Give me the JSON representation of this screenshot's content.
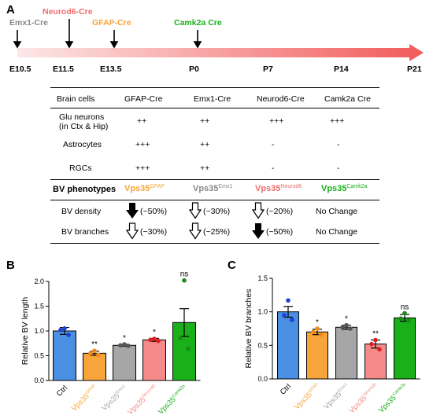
{
  "panels": {
    "a": "A",
    "b": "B",
    "c": "C"
  },
  "timeline": {
    "cre_lines": [
      {
        "label": "Emx1-Cre",
        "color": "#888888"
      },
      {
        "label": "Neurod6-Cre",
        "color": "#f26b6b"
      },
      {
        "label": "GFAP-Cre",
        "color": "#f7a43a"
      },
      {
        "label": "Camk2a Cre",
        "color": "#19b019"
      }
    ],
    "stages": [
      "E10.5",
      "E11.5",
      "E13.5",
      "P0",
      "P7",
      "P14",
      "P21"
    ]
  },
  "table": {
    "headers": [
      "Brain cells",
      "GFAP-Cre",
      "Emx1-Cre",
      "Neurod6-Cre",
      "Camk2a Cre"
    ],
    "rows": [
      {
        "label1": "Glu neurons",
        "label2": "(in Ctx & Hip)",
        "cells": [
          "++",
          "++",
          "+++",
          "+++"
        ]
      },
      {
        "label1": "Astrocytes",
        "cells": [
          "+++",
          "++",
          "-",
          "-"
        ]
      },
      {
        "label1": "RGCs",
        "cells": [
          "+++",
          "++",
          "-",
          "-"
        ]
      }
    ],
    "phenotype_header": "BV phenotypes",
    "phenotypes": [
      {
        "base": "Vps35",
        "sup": "GFAP",
        "color": "#f7a43a"
      },
      {
        "base": "Vps35",
        "sup": "Emx1",
        "color": "#888888"
      },
      {
        "base": "Vps35",
        "sup": "Neurod6",
        "color": "#f26b6b"
      },
      {
        "base": "Vps35",
        "sup": "Camk2a",
        "color": "#19b019"
      }
    ],
    "bv_rows": [
      {
        "label": "BV density",
        "cells": [
          "(~50%)",
          "(~30%)",
          "(~20%)",
          "No Change"
        ]
      },
      {
        "label": "BV branches",
        "cells": [
          "(~30%)",
          "(~25%)",
          "(~50%)",
          "No Change"
        ]
      }
    ]
  },
  "chart_data": [
    {
      "type": "bar",
      "ylabel": "Relative BV length",
      "ylim": [
        0,
        2.0
      ],
      "yticks": [
        "0.0",
        "0.5",
        "1.0",
        "1.5",
        "2.0"
      ],
      "categories": [
        {
          "base": "Ctrl",
          "sup": ""
        },
        {
          "base": "Vps35",
          "sup": "GFAP"
        },
        {
          "base": "Vps35",
          "sup": "Emx1"
        },
        {
          "base": "Vps35",
          "sup": "Neurod6"
        },
        {
          "base": "Vps35",
          "sup": "Camk2a"
        }
      ],
      "values": [
        1.0,
        0.55,
        0.71,
        0.82,
        1.17
      ],
      "errors": [
        0.07,
        0.04,
        0.02,
        0.03,
        0.28
      ],
      "points": [
        [
          1.05,
          1.02,
          0.92
        ],
        [
          0.6,
          0.55,
          0.52
        ],
        [
          0.73,
          0.71,
          0.7
        ],
        [
          0.84,
          0.82,
          0.8
        ],
        [
          2.02,
          0.86,
          0.64
        ]
      ],
      "significance": [
        "",
        "**",
        "*",
        "*",
        "ns"
      ],
      "colors": [
        "#4a90e2",
        "#f7a43a",
        "#a6a6a6",
        "#f48a8a",
        "#19b019"
      ],
      "point_colors": [
        "#1f3fd6",
        "#f08a1a",
        "#555555",
        "#e02020",
        "#1a8a1a"
      ]
    },
    {
      "type": "bar",
      "ylabel": "Relative BV branches",
      "ylim": [
        0,
        1.5
      ],
      "yticks": [
        "0.0",
        "0.5",
        "1.0",
        "1.5"
      ],
      "categories": [
        {
          "base": "Ctrl",
          "sup": ""
        },
        {
          "base": "Vps35",
          "sup": "GFAP"
        },
        {
          "base": "Vps35",
          "sup": "Emx1"
        },
        {
          "base": "Vps35",
          "sup": "Neurod6"
        },
        {
          "base": "Vps35",
          "sup": "Camk2a"
        }
      ],
      "values": [
        1.0,
        0.7,
        0.77,
        0.52,
        0.91
      ],
      "errors": [
        0.08,
        0.04,
        0.03,
        0.06,
        0.05
      ],
      "points": [
        [
          1.17,
          0.95,
          0.88
        ],
        [
          0.75,
          0.7,
          0.66
        ],
        [
          0.8,
          0.77,
          0.75
        ],
        [
          0.58,
          0.52,
          0.44
        ],
        [
          0.98,
          0.9,
          0.87
        ]
      ],
      "significance": [
        "",
        "*",
        "*",
        "**",
        "ns"
      ],
      "colors": [
        "#4a90e2",
        "#f7a43a",
        "#a6a6a6",
        "#f48a8a",
        "#19b019"
      ],
      "point_colors": [
        "#1f3fd6",
        "#f08a1a",
        "#555555",
        "#e02020",
        "#1a8a1a"
      ]
    }
  ]
}
